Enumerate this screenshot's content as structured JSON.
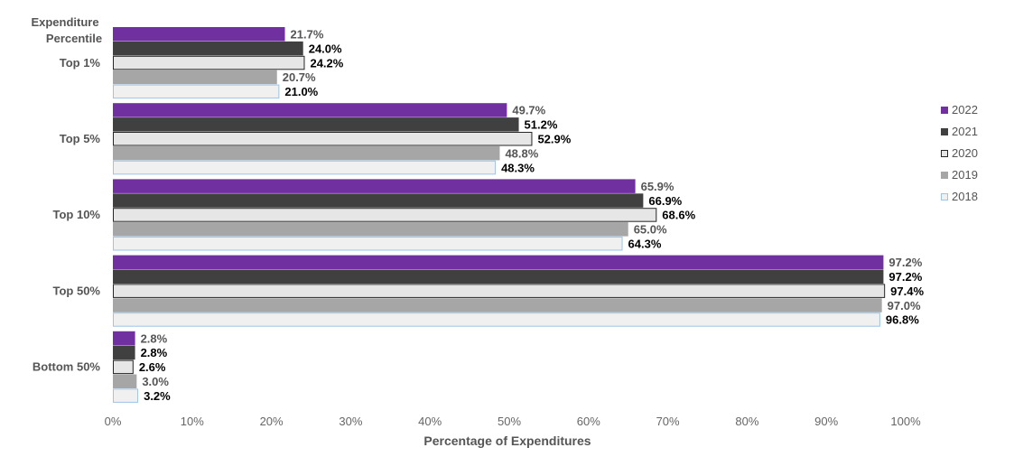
{
  "chart_data": {
    "type": "bar",
    "orientation": "horizontal",
    "title": "",
    "y_axis_title": "Expenditure Percentile",
    "xlabel": "Percentage of Expenditures",
    "categories": [
      "Top 1%",
      "Top 5%",
      "Top 10%",
      "Top 50%",
      "Bottom 50%"
    ],
    "series": [
      {
        "name": "2022",
        "values": [
          21.7,
          49.7,
          65.9,
          97.2,
          2.8
        ],
        "labels": [
          "21.7%",
          "49.7%",
          "65.9%",
          "97.2%",
          "2.8%"
        ],
        "color": "#7030a0",
        "border": "#7030a0",
        "label_color": "#555555"
      },
      {
        "name": "2021",
        "values": [
          24.0,
          51.2,
          66.9,
          97.2,
          2.8
        ],
        "labels": [
          "24.0%",
          "51.2%",
          "66.9%",
          "97.2%",
          "2.8%"
        ],
        "color": "#404040",
        "border": "#404040",
        "label_color": "#000000"
      },
      {
        "name": "2020",
        "values": [
          24.2,
          52.9,
          68.6,
          97.4,
          2.6
        ],
        "labels": [
          "24.2%",
          "52.9%",
          "68.6%",
          "97.4%",
          "2.6%"
        ],
        "color": "#e6e6e6",
        "border": "#262626",
        "label_color": "#000000"
      },
      {
        "name": "2019",
        "values": [
          20.7,
          48.8,
          65.0,
          97.0,
          3.0
        ],
        "labels": [
          "20.7%",
          "48.8%",
          "65.0%",
          "97.0%",
          "3.0%"
        ],
        "color": "#a6a6a6",
        "border": "#a6a6a6",
        "label_color": "#555555"
      },
      {
        "name": "2018",
        "values": [
          21.0,
          48.3,
          64.3,
          96.8,
          3.2
        ],
        "labels": [
          "21.0%",
          "48.3%",
          "64.3%",
          "96.8%",
          "3.2%"
        ],
        "color": "#f0f0f0",
        "border": "#9dc3e6",
        "label_color": "#000000"
      }
    ],
    "xlim": [
      0,
      100
    ],
    "x_ticks": [
      "0%",
      "10%",
      "20%",
      "30%",
      "40%",
      "50%",
      "60%",
      "70%",
      "80%",
      "90%",
      "100%"
    ],
    "grid": false,
    "legend_position": "right"
  }
}
